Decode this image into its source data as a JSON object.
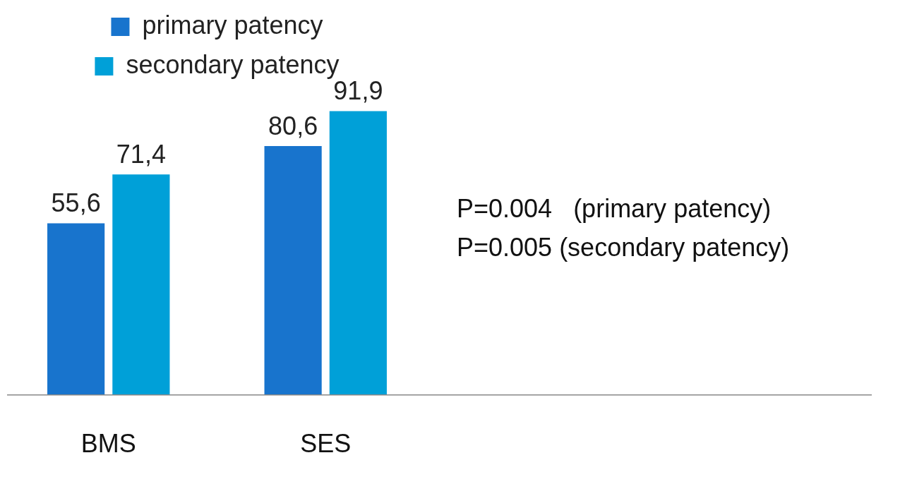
{
  "chart_data": {
    "type": "bar",
    "categories": [
      "BMS",
      "SES"
    ],
    "series": [
      {
        "name": "primary patency",
        "color": "#1874cd",
        "values": [
          55.6,
          80.6
        ],
        "value_labels": [
          "55,6",
          "80,6"
        ]
      },
      {
        "name": "secondary patency",
        "color": "#00a0d8",
        "values": [
          71.4,
          91.9
        ],
        "value_labels": [
          "71,4",
          "91,9"
        ]
      }
    ],
    "legend": "top",
    "grid": false,
    "tick_labels": "x",
    "annotations": [
      "P=0.004   (primary patency)",
      "P=0.005 (secondary patency)"
    ]
  }
}
